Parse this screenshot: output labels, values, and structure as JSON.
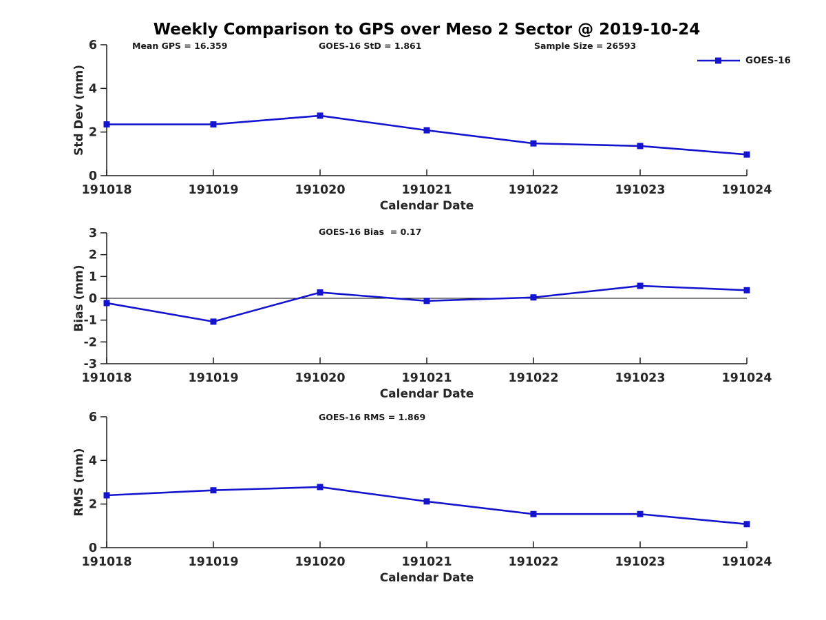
{
  "title": "Weekly Comparison to GPS over Meso 2 Sector @ 2019-10-24",
  "colors": {
    "series_blue": "#1414CE",
    "axis": "#1a1a1a",
    "tick_label": "#262626",
    "background": "#ffffff"
  },
  "legend": {
    "entries": [
      {
        "label": "GOES-16",
        "color": "#1414CE",
        "marker": "filled-square"
      }
    ],
    "position": "top-right"
  },
  "chart_data": [
    {
      "type": "line",
      "name": "std-dev-vs-date",
      "annotations": [
        "Mean GPS = 16.359",
        "GOES-16 StD = 1.861",
        "Sample Size = 26593"
      ],
      "categories": [
        "191018",
        "191019",
        "191020",
        "191021",
        "191022",
        "191023",
        "191024"
      ],
      "series": [
        {
          "name": "GOES-16",
          "color": "#1414CE",
          "marker": "square",
          "values": [
            2.35,
            2.35,
            2.75,
            2.08,
            1.48,
            1.36,
            0.97
          ]
        }
      ],
      "xlabel": "Calendar Date",
      "ylabel": "Std Dev (mm)",
      "ylim": [
        0,
        6
      ],
      "yticks": [
        0,
        2,
        4,
        6
      ],
      "grid": false,
      "zero_line": false
    },
    {
      "type": "line",
      "name": "bias-vs-date",
      "annotations": [
        "GOES-16 Bias  = 0.17"
      ],
      "categories": [
        "191018",
        "191019",
        "191020",
        "191021",
        "191022",
        "191023",
        "191024"
      ],
      "series": [
        {
          "name": "GOES-16",
          "color": "#1414CE",
          "marker": "square",
          "values": [
            -0.22,
            -1.07,
            0.27,
            -0.12,
            0.04,
            0.57,
            0.37
          ]
        }
      ],
      "xlabel": "Calendar Date",
      "ylabel": "Bias (mm)",
      "ylim": [
        -3,
        3
      ],
      "yticks": [
        3,
        2,
        1,
        0,
        -1,
        -2,
        -3
      ],
      "grid": false,
      "zero_line": true
    },
    {
      "type": "line",
      "name": "rms-vs-date",
      "annotations": [
        "GOES-16 RMS = 1.869"
      ],
      "categories": [
        "191018",
        "191019",
        "191020",
        "191021",
        "191022",
        "191023",
        "191024"
      ],
      "series": [
        {
          "name": "GOES-16",
          "color": "#1414CE",
          "marker": "square",
          "values": [
            2.4,
            2.63,
            2.78,
            2.12,
            1.54,
            1.54,
            1.08
          ]
        }
      ],
      "xlabel": "Calendar Date",
      "ylabel": "RMS (mm)",
      "ylim": [
        0,
        6
      ],
      "yticks": [
        0,
        2,
        4,
        6
      ],
      "grid": false,
      "zero_line": false
    }
  ]
}
